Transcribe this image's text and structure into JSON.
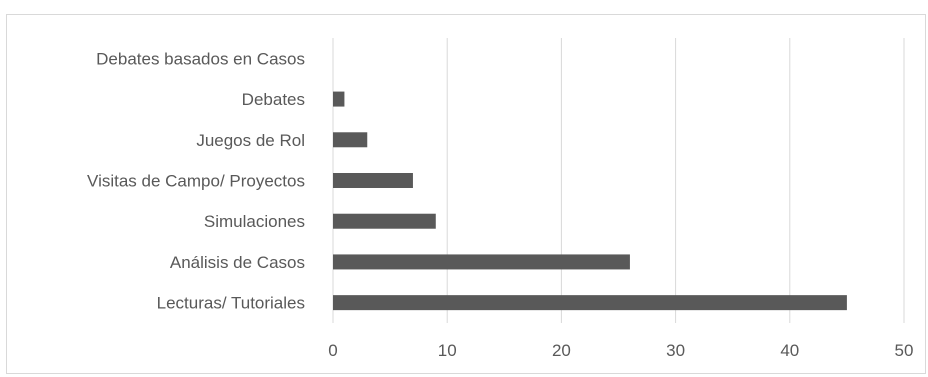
{
  "chart_data": {
    "type": "bar",
    "orientation": "horizontal",
    "categories": [
      "Lecturas/ Tutoriales",
      "Análisis de Casos",
      "Simulaciones",
      "Visitas de Campo/ Proyectos",
      "Juegos de Rol",
      "Debates",
      "Debates basados en Casos"
    ],
    "values": [
      45,
      26,
      9,
      7,
      3,
      1,
      0
    ],
    "xlim": [
      0,
      50
    ],
    "xticks": [
      "0",
      "10",
      "20",
      "30",
      "40",
      "50"
    ],
    "grid": true,
    "legend": false,
    "bar_color": "#595959",
    "grid_color": "#d9d9d9",
    "title": "",
    "xlabel": "",
    "ylabel": ""
  }
}
